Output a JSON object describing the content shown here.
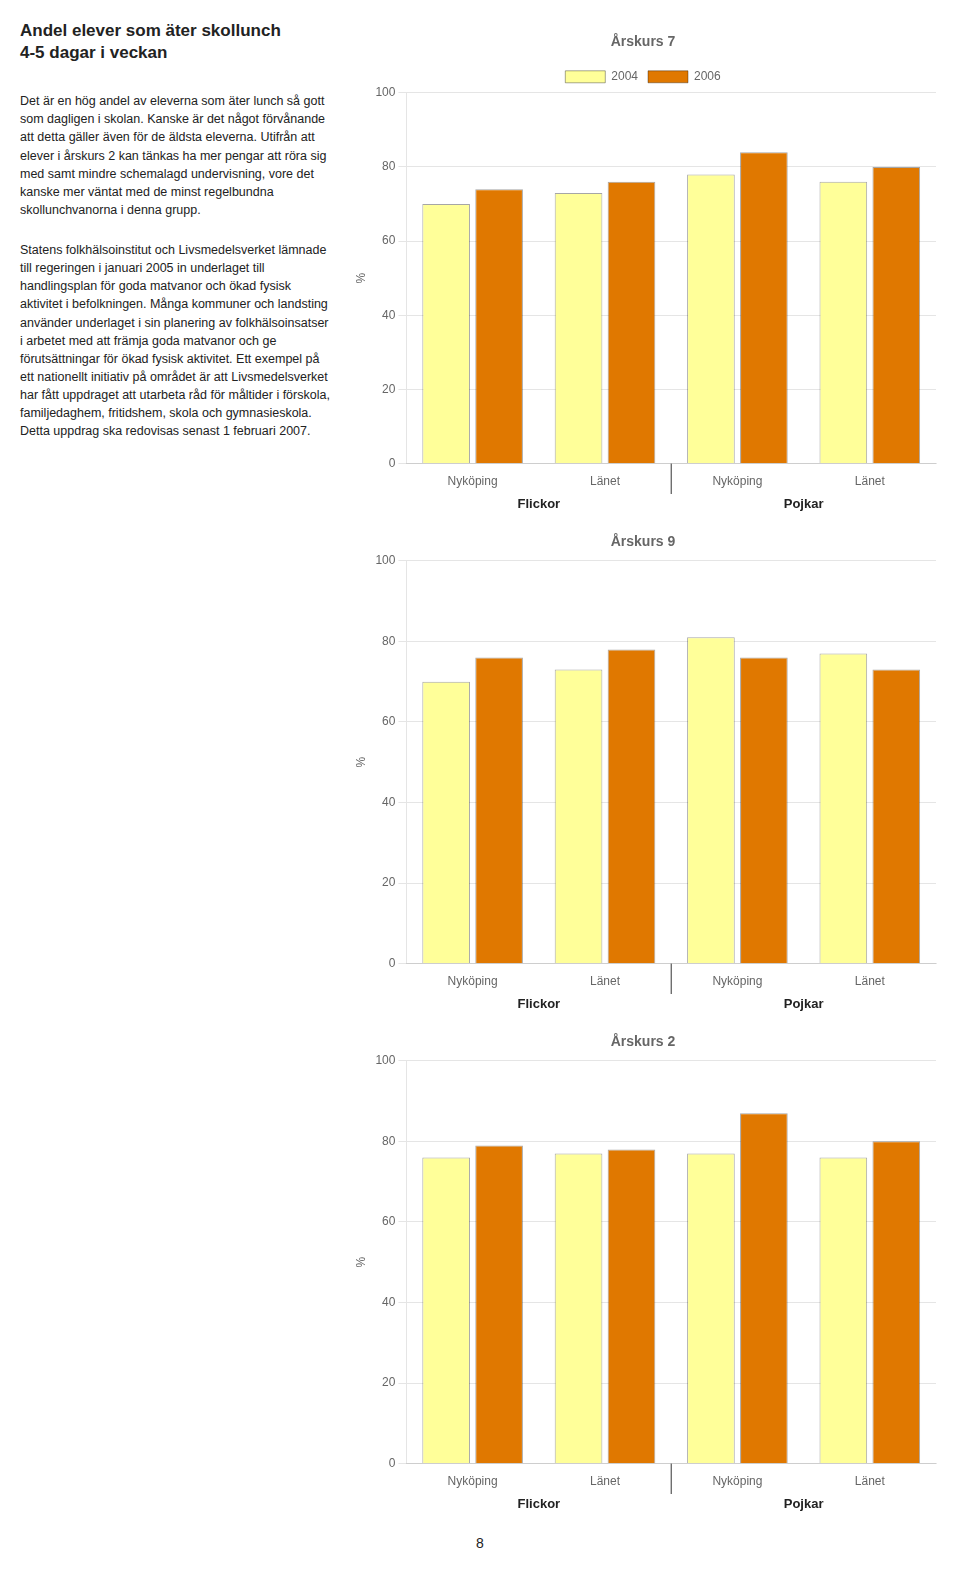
{
  "title": "Andel elever som äter skollunch\n4-5 dagar i veckan",
  "annotations": [
    "Det är en hög andel av eleverna som äter lunch så gott som dagligen i skolan. Kanske är det något förvånande att detta gäller även för de äldsta eleverna. Utifrån att elever i årskurs 2 kan tänkas ha mer pengar att röra sig med samt mindre schemalagd undervisning, vore det kanske mer väntat med de minst regelbundna skollunchvanorna i denna grupp.",
    "Statens folkhälsoinstitut och Livsmedelsverket lämnade till regeringen i januari 2005 in underlaget till handlingsplan för goda matvanor och ökad fysisk aktivitet i befolkningen. Många kommuner och landsting använder underlaget i sin planering av folkhälsoinsatser i arbetet med att främja goda matvanor och ge förutsättningar för ökad fysisk aktivitet. Ett exempel på ett nationellt initiativ på området är att Livsmedelsverket har fått uppdraget att utarbeta råd för måltider i förskola, familjedaghem, fritidshem, skola och gymnasieskola. Detta uppdrag ska redovisas senast 1 februari 2007.",
    "8"
  ],
  "chart_data": [
    {
      "type": "bar",
      "title": "Årskurs 7",
      "categories": [
        "Nyköping",
        "Länet",
        "Nyköping",
        "Länet"
      ],
      "annotations": [
        "Flickor",
        "Pojkar"
      ],
      "series": [
        {
          "name": "2004",
          "color": "#FFFF99",
          "values": [
            70,
            73,
            78,
            76
          ]
        },
        {
          "name": "2006",
          "color": "#E07800",
          "values": [
            74,
            76,
            84,
            80
          ]
        }
      ],
      "ylabel": "%",
      "ylim": [
        0,
        100
      ],
      "yticks": [
        0,
        20,
        40,
        60,
        80,
        100
      ],
      "grid": true,
      "legend": "top"
    },
    {
      "type": "bar",
      "title": "Årskurs 9",
      "categories": [
        "Nyköping",
        "Länet",
        "Nyköping",
        "Länet"
      ],
      "annotations": [
        "Flickor",
        "Pojkar"
      ],
      "series": [
        {
          "name": "2004",
          "color": "#FFFF99",
          "values": [
            70,
            73,
            81,
            77
          ]
        },
        {
          "name": "2006",
          "color": "#E07800",
          "values": [
            76,
            78,
            76,
            73
          ]
        }
      ],
      "ylabel": "%",
      "ylim": [
        0,
        100
      ],
      "yticks": [
        0,
        20,
        40,
        60,
        80,
        100
      ],
      "grid": true
    },
    {
      "type": "bar",
      "title": "Årskurs 2",
      "categories": [
        "Nyköping",
        "Länet",
        "Nyköping",
        "Länet"
      ],
      "annotations": [
        "Flickor",
        "Pojkar"
      ],
      "series": [
        {
          "name": "2004",
          "color": "#FFFF99",
          "values": [
            76,
            77,
            77,
            76
          ]
        },
        {
          "name": "2006",
          "color": "#E07800",
          "values": [
            79,
            78,
            87,
            80
          ]
        }
      ],
      "ylabel": "%",
      "ylim": [
        0,
        100
      ],
      "yticks": [
        0,
        20,
        40,
        60,
        80,
        100
      ],
      "grid": true
    }
  ]
}
